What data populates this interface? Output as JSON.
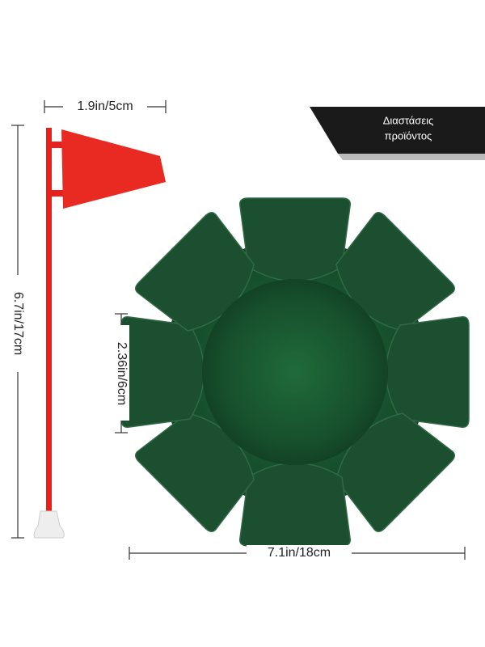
{
  "banner": {
    "lines": [
      "Διαστάσεις",
      "προϊόντος"
    ]
  },
  "dimensions": {
    "flag_width": "1.9in/5cm",
    "flag_height": "6.7in/17cm",
    "cup_depth": "2.36in/6cm",
    "cup_diameter": "7.1in/18cm"
  }
}
